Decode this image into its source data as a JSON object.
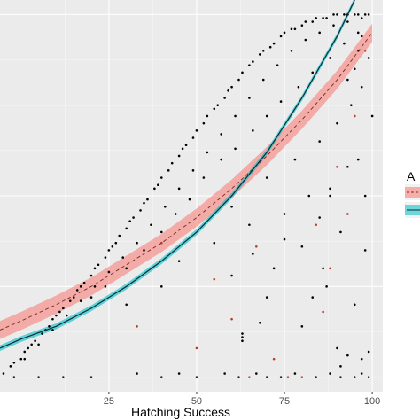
{
  "chart_data": {
    "type": "scatter",
    "title": "",
    "xlabel": "Hatching Success",
    "ylabel": "",
    "xlim": [
      -6,
      103
    ],
    "ylim": [
      -4,
      104
    ],
    "x_ticks": [
      25,
      50,
      75,
      100
    ],
    "x_tick_labels": [
      "25",
      "50",
      "75",
      "100"
    ],
    "grid": true,
    "legend": {
      "title": "A",
      "placement": "right",
      "entries": [
        {
          "name": "",
          "color": "#F8766D",
          "style": "dashed"
        },
        {
          "name": "",
          "color": "#00BFC4",
          "style": "solid"
        }
      ]
    },
    "series": [
      {
        "type": "scatter",
        "points_black": [
          [
            -5,
            1
          ],
          [
            -3,
            3
          ],
          [
            -2,
            4
          ],
          [
            0,
            5
          ],
          [
            1,
            7
          ],
          [
            2,
            8
          ],
          [
            3,
            9
          ],
          [
            4,
            10
          ],
          [
            6,
            12
          ],
          [
            7,
            13
          ],
          [
            8,
            14
          ],
          [
            9,
            16
          ],
          [
            10,
            17
          ],
          [
            11,
            18
          ],
          [
            12,
            19
          ],
          [
            14,
            21
          ],
          [
            15,
            22
          ],
          [
            16,
            24
          ],
          [
            17,
            25
          ],
          [
            18,
            26
          ],
          [
            20,
            28
          ],
          [
            21,
            30
          ],
          [
            22,
            31
          ],
          [
            24,
            33
          ],
          [
            25,
            35
          ],
          [
            26,
            36
          ],
          [
            27,
            37
          ],
          [
            28,
            39
          ],
          [
            30,
            41
          ],
          [
            31,
            43
          ],
          [
            32,
            44
          ],
          [
            34,
            46
          ],
          [
            35,
            48
          ],
          [
            36,
            49
          ],
          [
            38,
            52
          ],
          [
            39,
            53
          ],
          [
            40,
            55
          ],
          [
            42,
            57
          ],
          [
            43,
            59
          ],
          [
            45,
            61
          ],
          [
            46,
            63
          ],
          [
            47,
            64
          ],
          [
            49,
            66
          ],
          [
            50,
            68
          ],
          [
            52,
            70
          ],
          [
            53,
            72
          ],
          [
            55,
            74
          ],
          [
            56,
            75
          ],
          [
            58,
            77
          ],
          [
            59,
            79
          ],
          [
            60,
            80
          ],
          [
            62,
            82
          ],
          [
            63,
            84
          ],
          [
            65,
            86
          ],
          [
            66,
            87
          ],
          [
            68,
            89
          ],
          [
            69,
            90
          ],
          [
            71,
            91
          ],
          [
            72,
            92
          ],
          [
            74,
            94
          ],
          [
            75,
            95
          ],
          [
            77,
            96
          ],
          [
            78,
            96
          ],
          [
            80,
            97
          ],
          [
            81,
            98
          ],
          [
            83,
            98
          ],
          [
            84,
            99
          ],
          [
            86,
            99
          ],
          [
            87,
            99
          ],
          [
            89,
            100
          ],
          [
            90,
            100
          ],
          [
            92,
            100
          ],
          [
            93,
            100
          ],
          [
            95,
            100
          ],
          [
            96,
            100
          ],
          [
            98,
            100
          ],
          [
            99,
            100
          ],
          [
            1,
            5
          ],
          [
            5,
            9
          ],
          [
            9,
            13
          ],
          [
            13,
            17
          ],
          [
            17,
            21
          ],
          [
            21,
            25
          ],
          [
            25,
            29
          ],
          [
            29,
            33
          ],
          [
            33,
            37
          ],
          [
            37,
            42
          ],
          [
            41,
            47
          ],
          [
            45,
            52
          ],
          [
            49,
            57
          ],
          [
            53,
            62
          ],
          [
            57,
            67
          ],
          [
            61,
            72
          ],
          [
            65,
            77
          ],
          [
            69,
            82
          ],
          [
            73,
            86
          ],
          [
            77,
            90
          ],
          [
            81,
            93
          ],
          [
            85,
            95
          ],
          [
            89,
            97
          ],
          [
            93,
            98
          ],
          [
            97,
            99
          ],
          [
            20,
            22
          ],
          [
            24,
            25
          ],
          [
            30,
            30
          ],
          [
            35,
            35
          ],
          [
            40,
            40
          ],
          [
            44,
            45
          ],
          [
            48,
            49
          ],
          [
            52,
            55
          ],
          [
            57,
            60
          ],
          [
            61,
            63
          ],
          [
            66,
            68
          ],
          [
            70,
            72
          ],
          [
            74,
            76
          ],
          [
            79,
            80
          ],
          [
            83,
            84
          ],
          [
            88,
            88
          ],
          [
            92,
            92
          ],
          [
            96,
            95
          ],
          [
            30,
            20
          ],
          [
            40,
            25
          ],
          [
            45,
            32
          ],
          [
            55,
            37
          ],
          [
            60,
            47
          ],
          [
            65,
            42
          ],
          [
            70,
            55
          ],
          [
            75,
            45
          ],
          [
            78,
            60
          ],
          [
            80,
            36
          ],
          [
            82,
            50
          ],
          [
            85,
            65
          ],
          [
            86,
            30
          ],
          [
            88,
            52
          ],
          [
            90,
            70
          ],
          [
            91,
            40
          ],
          [
            93,
            58
          ],
          [
            94,
            75
          ],
          [
            95,
            20
          ],
          [
            96,
            60
          ],
          [
            97,
            80
          ],
          [
            98,
            50
          ],
          [
            99,
            88
          ],
          [
            100,
            72
          ],
          [
            -2,
            0
          ],
          [
            5,
            0
          ],
          [
            12,
            0
          ],
          [
            20,
            0
          ],
          [
            33,
            1
          ],
          [
            40,
            0
          ],
          [
            45,
            1
          ],
          [
            50,
            0
          ],
          [
            58,
            1
          ],
          [
            62,
            0
          ],
          [
            67,
            1
          ],
          [
            70,
            0
          ],
          [
            74,
            0
          ],
          [
            78,
            1
          ],
          [
            84,
            0
          ],
          [
            88,
            1
          ],
          [
            91,
            0
          ],
          [
            95,
            0
          ],
          [
            97,
            1
          ],
          [
            99,
            0
          ],
          [
            63,
            10
          ],
          [
            63,
            11
          ],
          [
            63,
            12
          ],
          [
            80,
            14
          ],
          [
            90,
            8
          ],
          [
            91,
            3
          ],
          [
            93,
            6
          ],
          [
            97,
            5
          ],
          [
            99,
            7
          ],
          [
            98,
            35
          ],
          [
            93,
            82
          ],
          [
            95,
            85
          ],
          [
            96,
            90
          ],
          [
            97,
            94
          ],
          [
            88,
            50
          ],
          [
            87,
            25
          ],
          [
            85,
            44
          ],
          [
            83,
            22
          ],
          [
            75,
            38
          ],
          [
            72,
            30
          ],
          [
            70,
            22
          ],
          [
            68,
            15
          ],
          [
            66,
            34
          ],
          [
            60,
            28
          ]
        ],
        "points_red": [
          [
            40,
            37
          ],
          [
            55,
            27
          ],
          [
            60,
            16
          ],
          [
            67,
            36
          ],
          [
            72,
            5
          ],
          [
            76,
            0
          ],
          [
            84,
            42
          ],
          [
            88,
            30
          ],
          [
            90,
            58
          ],
          [
            93,
            45
          ],
          [
            95,
            72
          ],
          [
            98,
            90
          ],
          [
            50,
            8
          ],
          [
            65,
            0
          ],
          [
            80,
            0
          ],
          [
            33,
            14
          ],
          [
            86,
            18
          ]
        ]
      },
      {
        "type": "line",
        "name": "",
        "style": "dashed",
        "color": "#F8766D",
        "x": [
          -6,
          0,
          10,
          20,
          30,
          40,
          50,
          60,
          70,
          80,
          90,
          100
        ],
        "y": [
          13,
          15.5,
          20,
          25,
          31,
          37,
          44,
          52,
          61,
          71,
          82,
          95
        ],
        "ci_halfwidth": 2.5
      },
      {
        "type": "line",
        "name": "",
        "style": "solid",
        "color": "#00BFC4",
        "x": [
          -6,
          0,
          10,
          20,
          30,
          40,
          50,
          60,
          70,
          80,
          90,
          95
        ],
        "y": [
          8,
          10.5,
          14,
          19,
          25,
          32,
          40,
          50,
          62,
          77,
          94,
          104
        ],
        "ci_halfwidth": 0.8
      }
    ]
  }
}
